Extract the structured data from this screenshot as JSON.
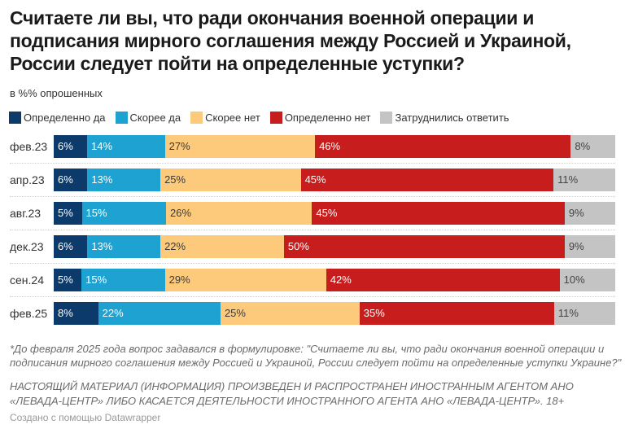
{
  "header": {
    "title_lines": [
      "Считаете ли вы, что ради окончания военной операции и",
      "подписания мирного соглашения между Россией и Украиной,",
      "России следует пойти на определенные уступки?"
    ],
    "subtitle": "в %% опрошенных"
  },
  "chart_data": {
    "type": "bar",
    "orientation": "horizontal",
    "stacked": true,
    "title": "Считаете ли вы, что ради окончания военной операции и подписания мирного соглашения между Россией и Украиной, России следует пойти на определенные уступки?",
    "subtitle": "в %% опрошенных",
    "xlabel": "",
    "ylabel": "",
    "xlim": [
      0,
      100
    ],
    "grid": false,
    "legend": "top-left",
    "value_suffix": "%",
    "categories": [
      "фев.23",
      "апр.23",
      "авг.23",
      "дек.23",
      "сен.24",
      "фев.25"
    ],
    "series": [
      {
        "name": "Определенно да",
        "color": "#0b3a6b",
        "label_color": "#ffffff",
        "values": [
          6,
          6,
          5,
          6,
          5,
          8
        ]
      },
      {
        "name": "Скорее да",
        "color": "#1ea2d2",
        "label_color": "#ffffff",
        "values": [
          14,
          13,
          15,
          13,
          15,
          22
        ]
      },
      {
        "name": "Скорее нет",
        "color": "#fdca7c",
        "label_color": "#3a3a3a",
        "values": [
          27,
          25,
          26,
          22,
          29,
          25
        ]
      },
      {
        "name": "Определенно нет",
        "color": "#c71e1d",
        "label_color": "#ffffff",
        "values": [
          46,
          45,
          45,
          50,
          42,
          35
        ]
      },
      {
        "name": "Затруднились ответить",
        "color": "#c4c4c4",
        "label_color": "#444444",
        "values": [
          8,
          11,
          9,
          9,
          10,
          11
        ]
      }
    ]
  },
  "footnote_lines": [
    "*До февраля 2025 года вопрос задавался в формулировке: \"Считаете ли вы, что ради окончания военной операции и",
    "подписания мирного соглашения между Россией и Украиной, России следует пойти на определенные уступки Украине?\""
  ],
  "disclaimer_lines": [
    "НАСТОЯЩИЙ МАТЕРИАЛ (ИНФОРМАЦИЯ) ПРОИЗВЕДЕН И РАСПРОСТРАНЕН ИНОСТРАННЫМ АГЕНТОМ АНО",
    "«ЛЕВАДА-ЦЕНТР» ЛИБО КАСАЕТСЯ ДЕЯТЕЛЬНОСТИ ИНОСТРАННОГО АГЕНТА АНО «ЛЕВАДА-ЦЕНТР». 18+"
  ],
  "credit": "Создано с помощью Datawrapper"
}
